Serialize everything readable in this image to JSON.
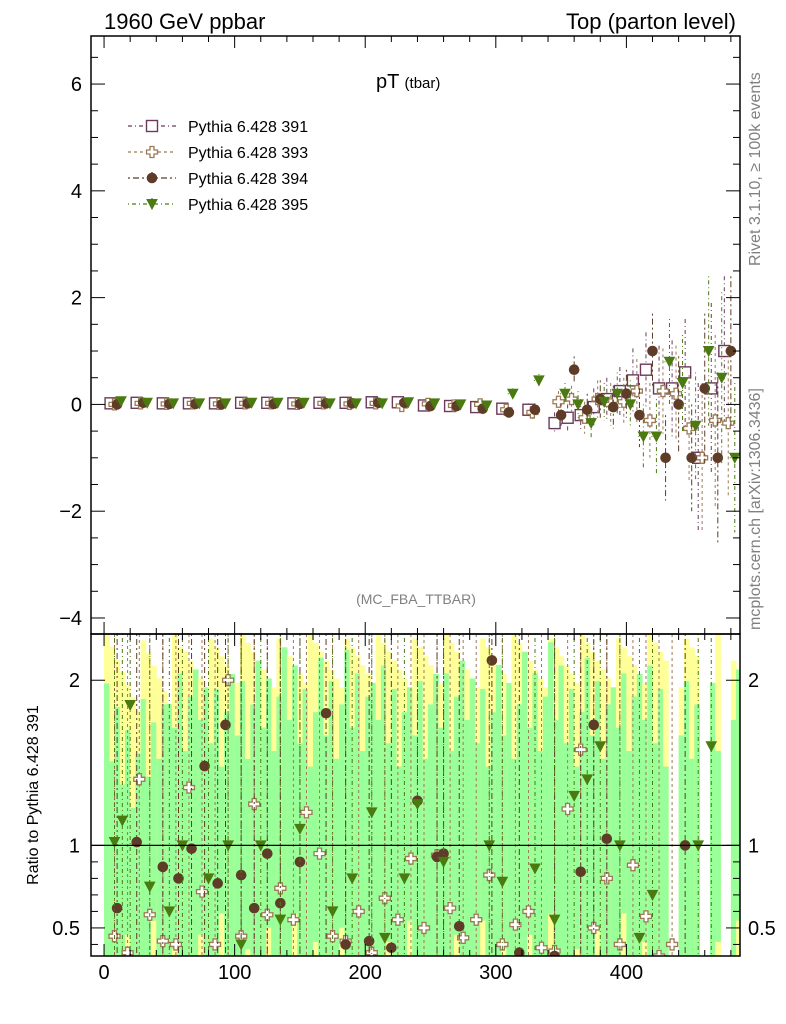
{
  "header": {
    "left": "1960 GeV ppbar",
    "right": "Top (parton level)"
  },
  "side_labels": {
    "rivet": "Rivet 3.1.10, ≥ 100k events",
    "mcplots": "mcplots.cern.ch [arXiv:1306.3436]"
  },
  "colors": {
    "s391": "#6b3a5a",
    "s393": "#9c7a55",
    "s394": "#5e3c28",
    "s395": "#4a7a10",
    "band_green": "#99ff99",
    "band_yellow": "#ffff99"
  },
  "chart_data": [
    {
      "type": "scatter",
      "title": "pT",
      "title_sub": "(tbar)",
      "watermark": "(MC_FBA_TTBAR)",
      "xlim": [
        -10,
        487
      ],
      "ylim": [
        -4.3,
        6.9
      ],
      "xticks": [
        0,
        100,
        200,
        300,
        400
      ],
      "yticks": [
        -4,
        -2,
        0,
        2,
        4,
        6
      ],
      "ytick_labels": [
        "−4",
        "−2",
        "0",
        "2",
        "4",
        "6"
      ],
      "legend_position": "top-left",
      "series": [
        {
          "name": "Pythia 6.428 391",
          "marker": "open-square",
          "color_key": "s391",
          "x": [
            5,
            25,
            45,
            65,
            85,
            105,
            125,
            145,
            165,
            185,
            205,
            225,
            245,
            265,
            285,
            305,
            325,
            345,
            355,
            365,
            375,
            385,
            395,
            405,
            415,
            425,
            435,
            445,
            455,
            465,
            475
          ],
          "y": [
            0.02,
            0.03,
            0.02,
            0.02,
            0.02,
            0.03,
            0.03,
            0.02,
            0.03,
            0.03,
            0.04,
            0.04,
            -0.02,
            -0.03,
            -0.05,
            -0.08,
            -0.1,
            -0.35,
            -0.25,
            -0.2,
            -0.05,
            0.1,
            0.25,
            0.45,
            0.65,
            0.3,
            0.3,
            0.6,
            -1.0,
            0.3,
            1.0
          ],
          "err": [
            0.03,
            0.03,
            0.03,
            0.03,
            0.03,
            0.03,
            0.03,
            0.03,
            0.04,
            0.04,
            0.04,
            0.05,
            0.06,
            0.07,
            0.08,
            0.1,
            0.12,
            0.2,
            0.25,
            0.3,
            0.35,
            0.4,
            0.45,
            0.6,
            0.7,
            0.8,
            0.9,
            1.0,
            1.4,
            1.6,
            1.4
          ]
        },
        {
          "name": "Pythia 6.428 393",
          "marker": "open-cross",
          "color_key": "s393",
          "x": [
            8,
            28,
            48,
            68,
            88,
            108,
            128,
            148,
            168,
            188,
            208,
            228,
            248,
            268,
            288,
            308,
            328,
            348,
            358,
            368,
            378,
            388,
            398,
            408,
            418,
            428,
            438,
            448,
            458,
            468,
            478
          ],
          "y": [
            0.0,
            0.02,
            0.01,
            0.02,
            0.01,
            0.02,
            0.02,
            0.01,
            0.02,
            0.01,
            0.02,
            -0.03,
            0.01,
            -0.02,
            0.0,
            -0.1,
            -0.15,
            0.05,
            0.1,
            -0.25,
            0.1,
            0.0,
            0.05,
            0.25,
            -0.3,
            0.25,
            0.2,
            -0.45,
            -1.0,
            -0.3,
            -0.35
          ],
          "err": [
            0.03,
            0.03,
            0.03,
            0.03,
            0.03,
            0.03,
            0.03,
            0.03,
            0.04,
            0.04,
            0.04,
            0.05,
            0.06,
            0.07,
            0.08,
            0.1,
            0.12,
            0.2,
            0.25,
            0.3,
            0.35,
            0.4,
            0.45,
            0.6,
            0.7,
            0.8,
            0.9,
            1.0,
            1.4,
            1.6,
            1.4
          ]
        },
        {
          "name": "Pythia 6.428 394",
          "marker": "filled-circle",
          "color_key": "s394",
          "x": [
            10,
            30,
            50,
            70,
            90,
            110,
            130,
            150,
            170,
            190,
            210,
            230,
            250,
            270,
            290,
            310,
            330,
            350,
            360,
            370,
            380,
            390,
            400,
            410,
            420,
            430,
            440,
            450,
            460,
            470,
            480
          ],
          "y": [
            0.0,
            0.03,
            0.01,
            0.01,
            0.0,
            0.02,
            0.01,
            0.01,
            0.02,
            0.02,
            0.03,
            0.03,
            -0.03,
            -0.03,
            -0.08,
            -0.15,
            -0.1,
            -0.2,
            0.65,
            -0.1,
            0.1,
            -0.05,
            0.2,
            -0.2,
            1.0,
            -1.0,
            0.0,
            -1.0,
            0.3,
            -1.0,
            1.0
          ],
          "err": [
            0.03,
            0.03,
            0.03,
            0.03,
            0.03,
            0.03,
            0.03,
            0.03,
            0.04,
            0.04,
            0.04,
            0.05,
            0.06,
            0.07,
            0.08,
            0.1,
            0.12,
            0.2,
            0.25,
            0.3,
            0.35,
            0.4,
            0.45,
            0.6,
            0.7,
            0.8,
            0.9,
            1.0,
            1.4,
            1.6,
            1.4
          ]
        },
        {
          "name": "Pythia 6.428 395",
          "marker": "filled-triangle-down",
          "color_key": "s395",
          "x": [
            13,
            33,
            53,
            73,
            93,
            113,
            133,
            153,
            173,
            193,
            213,
            233,
            253,
            273,
            293,
            313,
            333,
            353,
            363,
            373,
            383,
            393,
            403,
            413,
            423,
            433,
            443,
            453,
            463,
            473,
            483
          ],
          "y": [
            0.06,
            0.03,
            0.02,
            0.02,
            0.02,
            0.03,
            0.03,
            0.03,
            0.02,
            0.02,
            0.02,
            0.04,
            0.02,
            0.0,
            -0.02,
            0.2,
            0.45,
            0.2,
            0.0,
            -0.35,
            0.05,
            0.2,
            0.0,
            -0.6,
            -0.6,
            0.8,
            0.4,
            -0.4,
            1.0,
            0.5,
            -1.0
          ],
          "err": [
            0.03,
            0.03,
            0.03,
            0.03,
            0.03,
            0.03,
            0.03,
            0.03,
            0.04,
            0.04,
            0.04,
            0.05,
            0.06,
            0.07,
            0.08,
            0.1,
            0.12,
            0.2,
            0.25,
            0.3,
            0.35,
            0.4,
            0.45,
            0.6,
            0.7,
            0.8,
            0.9,
            1.0,
            1.4,
            1.6,
            1.4
          ]
        }
      ]
    },
    {
      "type": "scatter",
      "ylabel": "Ratio to Pythia 6.428 391",
      "xlim": [
        -10,
        487
      ],
      "ylim": [
        0.33,
        2.28
      ],
      "xticks": [
        0,
        100,
        200,
        300,
        400
      ],
      "yticks": [
        0.5,
        1,
        2
      ],
      "ytick_labels": [
        "0.5",
        "1",
        "2"
      ],
      "reference_line": 1,
      "series": [
        {
          "name": "Pythia 6.428 393",
          "marker": "open-cross",
          "color_key": "s393",
          "x": [
            8,
            18,
            27,
            35,
            45,
            55,
            65,
            75,
            85,
            95,
            105,
            115,
            125,
            135,
            145,
            155,
            165,
            175,
            185,
            195,
            205,
            215,
            225,
            235,
            245,
            255,
            265,
            275,
            285,
            295,
            305,
            315,
            325,
            335,
            345,
            355,
            365,
            375,
            385,
            395,
            405,
            415,
            425,
            435
          ],
          "y": [
            0.45,
            0.35,
            1.4,
            0.58,
            0.42,
            0.4,
            1.35,
            0.72,
            0.4,
            2.0,
            0.45,
            1.25,
            0.58,
            0.74,
            0.55,
            1.2,
            0.95,
            0.45,
            0.42,
            0.6,
            0.35,
            0.68,
            0.55,
            0.92,
            0.5,
            0.94,
            0.62,
            0.44,
            0.55,
            0.82,
            0.4,
            0.52,
            0.6,
            0.38,
            0.36,
            1.22,
            1.58,
            0.5,
            0.8,
            0.4,
            0.88,
            0.57,
            0.33,
            0.4
          ]
        },
        {
          "name": "Pythia 6.428 394",
          "marker": "filled-circle",
          "color_key": "s394",
          "x": [
            10,
            25,
            45,
            57,
            67,
            77,
            87,
            93,
            105,
            115,
            125,
            135,
            150,
            170,
            185,
            203,
            220,
            240,
            255,
            260,
            272,
            297,
            318,
            345,
            365,
            375,
            385,
            445
          ],
          "y": [
            0.62,
            1.02,
            0.87,
            0.8,
            0.98,
            1.48,
            0.77,
            1.73,
            0.82,
            0.62,
            0.95,
            0.65,
            0.9,
            1.8,
            0.4,
            0.42,
            0.38,
            1.27,
            0.93,
            0.95,
            0.51,
            2.12,
            0.35,
            0.33,
            0.84,
            1.73,
            1.04,
            1.0
          ]
        },
        {
          "name": "Pythia 6.428 395",
          "marker": "filled-triangle-down",
          "color_key": "s395",
          "x": [
            8,
            14,
            20,
            35,
            50,
            60,
            80,
            95,
            105,
            120,
            135,
            150,
            175,
            190,
            205,
            215,
            230,
            240,
            260,
            295,
            305,
            330,
            345,
            360,
            370,
            380,
            395,
            410,
            420,
            455,
            465
          ],
          "y": [
            1.02,
            1.15,
            1.85,
            0.75,
            0.6,
            1.0,
            0.8,
            1.0,
            0.4,
            1.0,
            0.55,
            1.1,
            0.6,
            0.8,
            1.2,
            0.44,
            0.8,
            1.25,
            0.9,
            1.0,
            0.78,
            0.86,
            0.55,
            1.3,
            1.4,
            1.6,
            1.0,
            0.44,
            0.7,
            1.0,
            1.6
          ]
        }
      ]
    }
  ]
}
